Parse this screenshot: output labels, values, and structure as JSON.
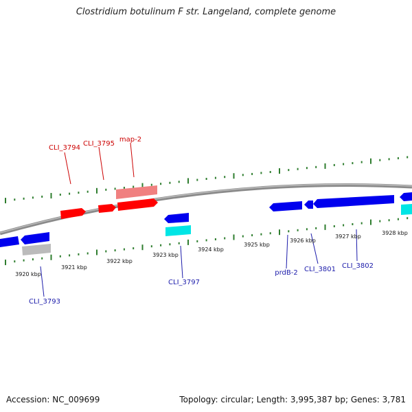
{
  "title": "Clostridium botulinum F str. Langeland, complete genome",
  "footer": {
    "accession": "Accession: NC_009699",
    "summary": "Topology: circular; Length: 3,995,387 bp; Genes: 3,781"
  },
  "colors": {
    "backbone": "#8a8a8a",
    "tick": "#2e7d2e",
    "forward_gene": "#ff0000",
    "forward_label": "#cc0000",
    "reverse_gene": "#0000ee",
    "reverse_label": "#1a1aaa",
    "rna": "#00e5e5",
    "pseudo": "#bbbbbb",
    "pale_forward": "#f08080"
  },
  "scale_labels": [
    "3920 kbp",
    "3921 kbp",
    "3922 kbp",
    "3923 kbp",
    "3924 kbp",
    "3925 kbp",
    "3926 kbp",
    "3927 kbp",
    "3928 kbp"
  ],
  "gene_labels": {
    "cli_3794": "CLI_3794",
    "cli_3795": "CLI_3795",
    "map_2": "map-2",
    "cli_3793": "CLI_3793",
    "cli_3797": "CLI_3797",
    "prdb_2": "prdB-2",
    "cli_3801": "CLI_3801",
    "cli_3802": "CLI_3802"
  }
}
